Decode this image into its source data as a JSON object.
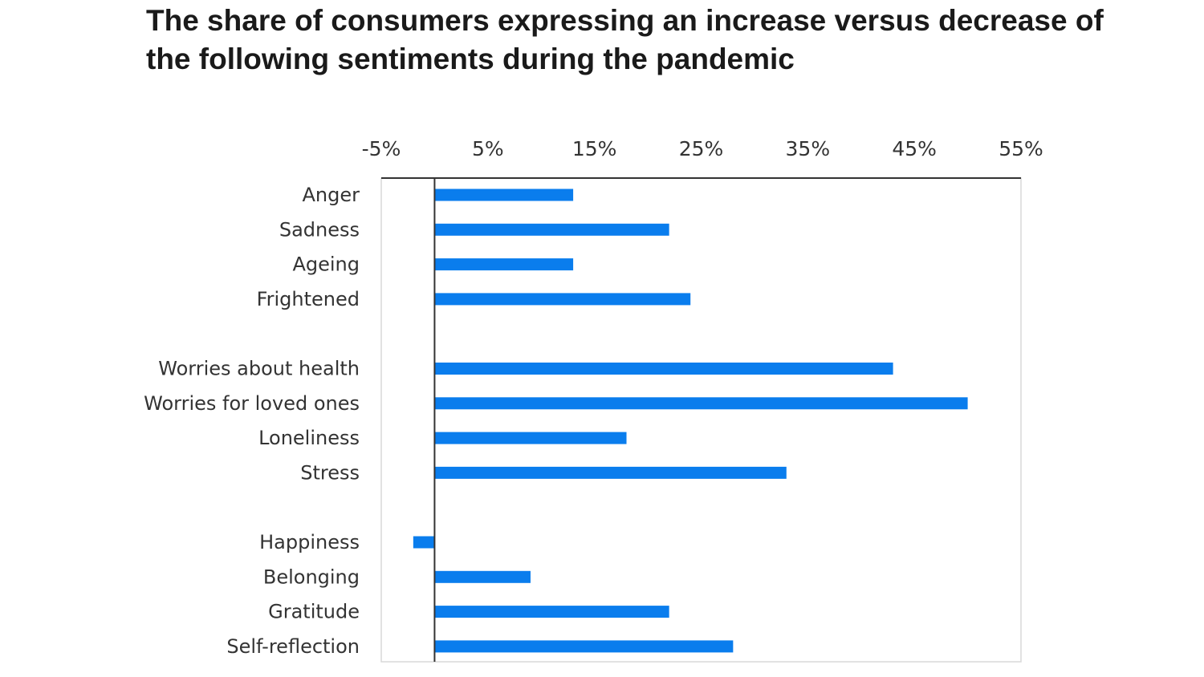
{
  "chart_data": {
    "type": "bar",
    "orientation": "horizontal",
    "title": "The share of consumers expressing an increase versus decrease of the following sentiments during the pandemic",
    "xlabel": "",
    "ylabel": "",
    "xlim": [
      -5,
      55
    ],
    "x_ticks": [
      "-5%",
      "5%",
      "15%",
      "25%",
      "35%",
      "45%",
      "55%"
    ],
    "x_axis_position": "top",
    "grid": false,
    "bar_color": "#0a7ded",
    "groups": [
      {
        "categories": [
          "Anger",
          "Sadness",
          "Ageing",
          "Frightened"
        ],
        "values": [
          13,
          22,
          13,
          24
        ]
      },
      {
        "categories": [
          "Worries about health",
          "Worries for loved ones",
          "Loneliness",
          "Stress"
        ],
        "values": [
          43,
          50,
          18,
          33
        ]
      },
      {
        "categories": [
          "Happiness",
          "Belonging",
          "Gratitude",
          "Self-reflection"
        ],
        "values": [
          -2,
          9,
          22,
          28
        ]
      }
    ],
    "unit": "%"
  }
}
